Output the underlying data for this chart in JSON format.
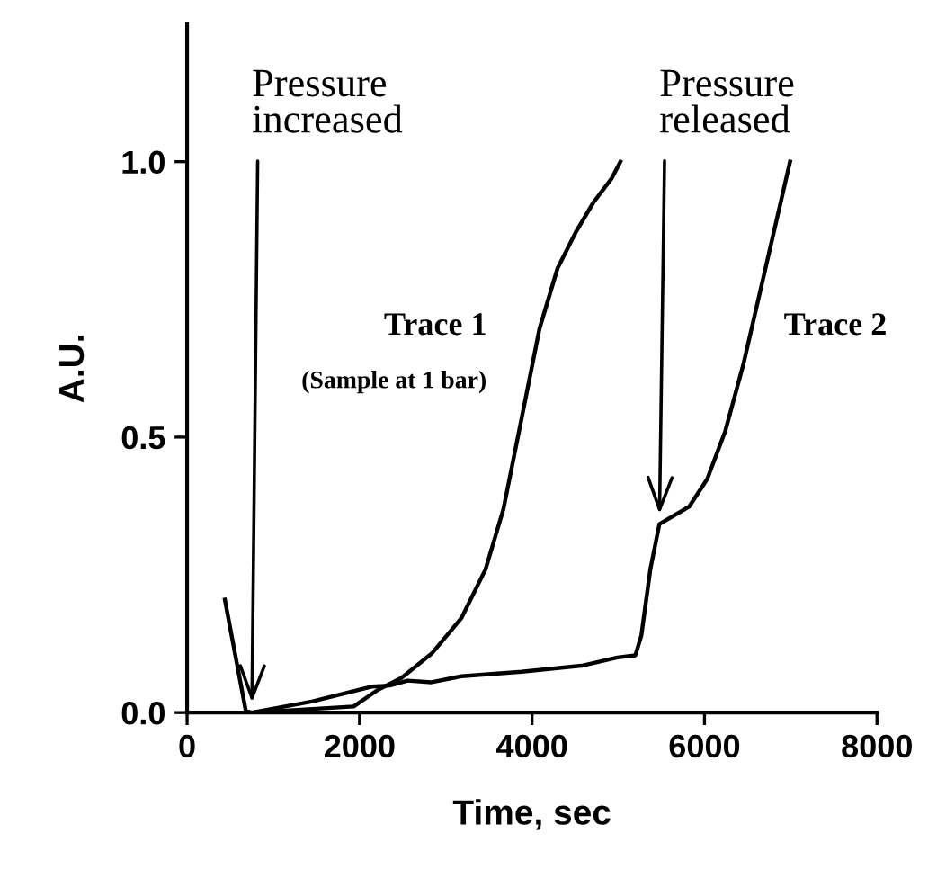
{
  "chart_data": {
    "type": "line",
    "xlabel": "Time, sec",
    "ylabel": "A.U.",
    "xlim": [
      0,
      8000
    ],
    "ylim": [
      0,
      1.25
    ],
    "xticks": [
      0,
      2000,
      4000,
      6000,
      8000
    ],
    "yticks": [
      {
        "value": 0,
        "label": "0.0"
      },
      {
        "value": 0.5,
        "label": "0.5"
      },
      {
        "value": 1,
        "label": "1.0"
      }
    ],
    "grid": false,
    "legend": false,
    "marker": "none",
    "line_style": "solid",
    "series": [
      {
        "name": "Trace 1",
        "color": "#000000",
        "x": [
          751,
          1932,
          2210,
          2488,
          2836,
          3183,
          3461,
          3668,
          3878,
          4087,
          4295,
          4504,
          4712,
          4921,
          5025
        ],
        "values": [
          0,
          0.011,
          0.041,
          0.063,
          0.107,
          0.172,
          0.26,
          0.369,
          0.533,
          0.697,
          0.806,
          0.871,
          0.926,
          0.969,
          1.0
        ]
      },
      {
        "name": "Trace 2",
        "color": "#000000",
        "x": [
          438,
          681,
          751,
          1446,
          2141,
          2349,
          2558,
          2836,
          3183,
          3878,
          4574,
          4990,
          5199,
          5268,
          5372,
          5477,
          5824,
          6032,
          6241,
          6449,
          6658,
          6992
        ],
        "values": [
          0.205,
          0.003,
          0,
          0.02,
          0.047,
          0.049,
          0.058,
          0.055,
          0.066,
          0.074,
          0.085,
          0.1,
          0.104,
          0.14,
          0.26,
          0.342,
          0.374,
          0.424,
          0.511,
          0.631,
          0.773,
          1.0
        ]
      }
    ],
    "annotations": [
      {
        "text": "Pressure increased",
        "x": 751,
        "y": 0
      },
      {
        "text": "Pressure released",
        "x": 5477,
        "y": 0.342
      },
      "(Sample at 1 bar)"
    ]
  }
}
